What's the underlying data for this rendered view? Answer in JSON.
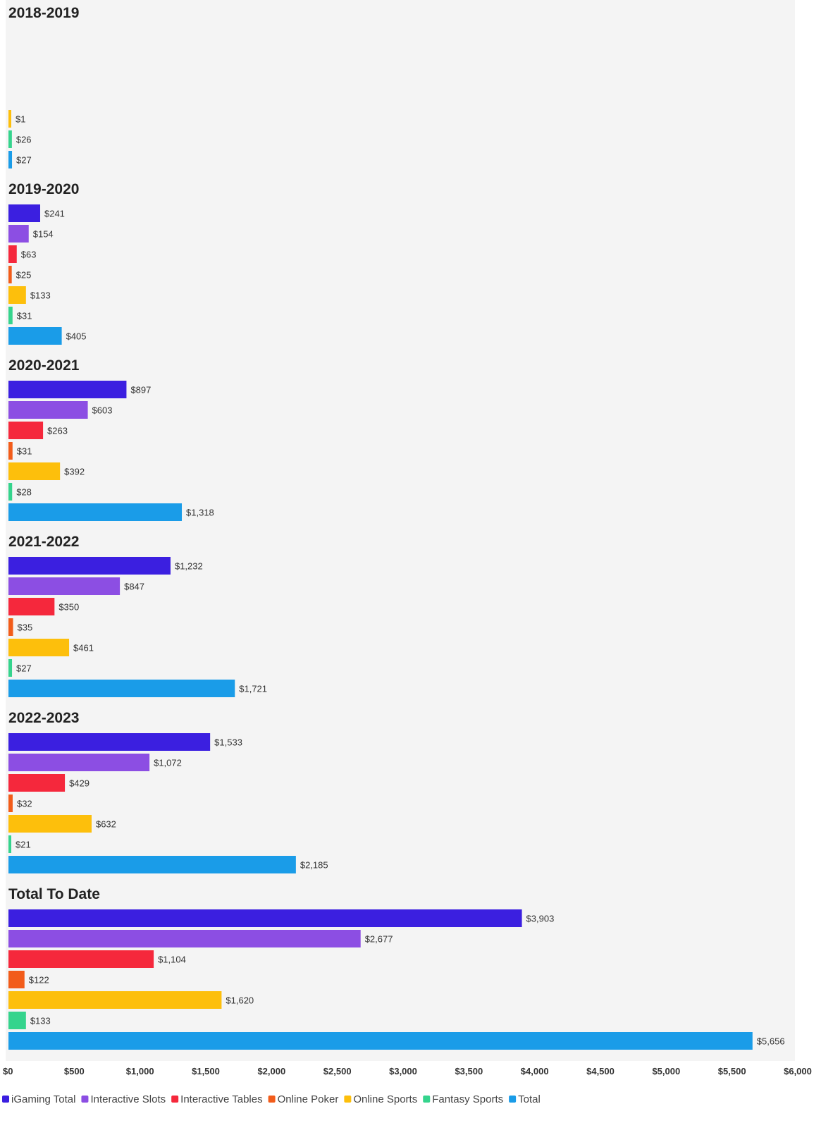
{
  "chart_data": {
    "type": "bar",
    "orientation": "horizontal",
    "groups": [
      {
        "title": "2018-2019",
        "values": [
          null,
          null,
          null,
          null,
          1,
          26,
          27
        ],
        "labels": [
          "",
          "",
          "",
          "",
          "$1",
          "$26",
          "$27"
        ]
      },
      {
        "title": "2019-2020",
        "values": [
          241,
          154,
          63,
          25,
          133,
          31,
          405
        ],
        "labels": [
          "$241",
          "$154",
          "$63",
          "$25",
          "$133",
          "$31",
          "$405"
        ]
      },
      {
        "title": "2020-2021",
        "values": [
          897,
          603,
          263,
          31,
          392,
          28,
          1318
        ],
        "labels": [
          "$897",
          "$603",
          "$263",
          "$31",
          "$392",
          "$28",
          "$1,318"
        ]
      },
      {
        "title": "2021-2022",
        "values": [
          1232,
          847,
          350,
          35,
          461,
          27,
          1721
        ],
        "labels": [
          "$1,232",
          "$847",
          "$350",
          "$35",
          "$461",
          "$27",
          "$1,721"
        ]
      },
      {
        "title": "2022-2023",
        "values": [
          1533,
          1072,
          429,
          32,
          632,
          21,
          2185
        ],
        "labels": [
          "$1,533",
          "$1,072",
          "$429",
          "$32",
          "$632",
          "$21",
          "$2,185"
        ]
      },
      {
        "title": "Total To Date",
        "values": [
          3903,
          2677,
          1104,
          122,
          1620,
          133,
          5656
        ],
        "labels": [
          "$3,903",
          "$2,677",
          "$1,104",
          "$122",
          "$1,620",
          "$133",
          "$5,656"
        ]
      }
    ],
    "series": [
      {
        "name": "iGaming Total",
        "color": "#3b1fe0"
      },
      {
        "name": "Interactive Slots",
        "color": "#8c4ee3"
      },
      {
        "name": "Interactive Tables",
        "color": "#f5283c"
      },
      {
        "name": "Online Poker",
        "color": "#f25c1a"
      },
      {
        "name": "Online Sports",
        "color": "#fdbf0c"
      },
      {
        "name": "Fantasy Sports",
        "color": "#35d48d"
      },
      {
        "name": "Total",
        "color": "#1a9ce8"
      }
    ],
    "xlim": [
      0,
      6000
    ],
    "xticks": [
      0,
      500,
      1000,
      1500,
      2000,
      2500,
      3000,
      3500,
      4000,
      4500,
      5000,
      5500,
      6000
    ],
    "xtick_labels": [
      "$0",
      "$500",
      "$1,000",
      "$1,500",
      "$2,000",
      "$2,500",
      "$3,000",
      "$3,500",
      "$4,000",
      "$4,500",
      "$5,000",
      "$5,500",
      "$6,000"
    ],
    "grid": false,
    "legend_position": "bottom-left",
    "background_color": "#f4f4f4"
  }
}
